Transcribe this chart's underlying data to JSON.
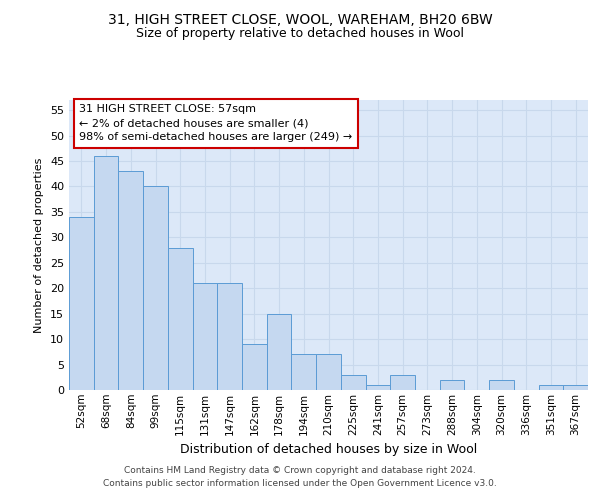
{
  "title_line1": "31, HIGH STREET CLOSE, WOOL, WAREHAM, BH20 6BW",
  "title_line2": "Size of property relative to detached houses in Wool",
  "xlabel": "Distribution of detached houses by size in Wool",
  "ylabel": "Number of detached properties",
  "categories": [
    "52sqm",
    "68sqm",
    "84sqm",
    "99sqm",
    "115sqm",
    "131sqm",
    "147sqm",
    "162sqm",
    "178sqm",
    "194sqm",
    "210sqm",
    "225sqm",
    "241sqm",
    "257sqm",
    "273sqm",
    "288sqm",
    "304sqm",
    "320sqm",
    "336sqm",
    "351sqm",
    "367sqm"
  ],
  "values": [
    34,
    46,
    43,
    40,
    28,
    21,
    21,
    9,
    15,
    7,
    7,
    3,
    1,
    3,
    0,
    2,
    0,
    2,
    0,
    1,
    1
  ],
  "bar_color": "#c5d8f0",
  "bar_edge_color": "#5b9bd5",
  "ylim_max": 57,
  "yticks": [
    0,
    5,
    10,
    15,
    20,
    25,
    30,
    35,
    40,
    45,
    50,
    55
  ],
  "annotation_text": "31 HIGH STREET CLOSE: 57sqm\n← 2% of detached houses are smaller (4)\n98% of semi-detached houses are larger (249) →",
  "annotation_box_facecolor": "#ffffff",
  "annotation_box_edgecolor": "#cc0000",
  "grid_color": "#c8d8ec",
  "background_color": "#dce8f8",
  "footer_line1": "Contains HM Land Registry data © Crown copyright and database right 2024.",
  "footer_line2": "Contains public sector information licensed under the Open Government Licence v3.0.",
  "title_fontsize": 10,
  "subtitle_fontsize": 9,
  "ylabel_fontsize": 8,
  "xlabel_fontsize": 9,
  "tick_fontsize": 8,
  "xtick_fontsize": 7.5,
  "annotation_fontsize": 8,
  "footer_fontsize": 6.5
}
